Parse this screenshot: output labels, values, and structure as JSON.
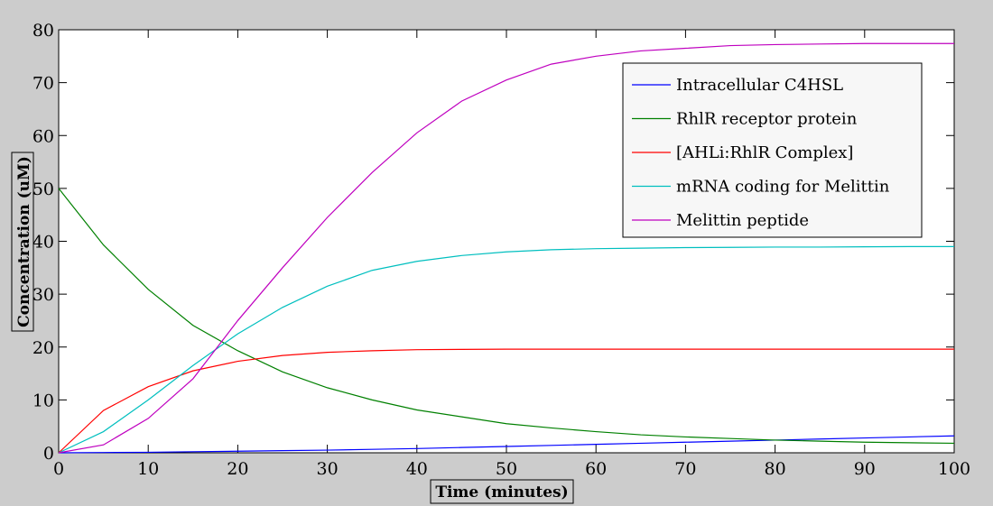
{
  "chart_data": {
    "type": "line",
    "title": "",
    "xlabel": "Time (minutes)",
    "ylabel": "Concentration (uM)",
    "xlim": [
      0,
      100
    ],
    "ylim": [
      0,
      80
    ],
    "xticks": [
      0,
      10,
      20,
      30,
      40,
      50,
      60,
      70,
      80,
      90,
      100
    ],
    "yticks": [
      0,
      10,
      20,
      30,
      40,
      50,
      60,
      70,
      80
    ],
    "grid": false,
    "legend_position": "top-right",
    "x": [
      0,
      5,
      10,
      15,
      20,
      25,
      30,
      35,
      40,
      45,
      50,
      55,
      60,
      65,
      70,
      75,
      80,
      85,
      90,
      95,
      100
    ],
    "series": [
      {
        "name": "Intracellular C4HSL",
        "color": "#0000ff",
        "values": [
          0,
          0.05,
          0.1,
          0.2,
          0.3,
          0.4,
          0.5,
          0.65,
          0.8,
          1.0,
          1.2,
          1.4,
          1.6,
          1.8,
          2.0,
          2.2,
          2.4,
          2.6,
          2.8,
          3.0,
          3.2
        ]
      },
      {
        "name": "RhlR receptor protein",
        "color": "#008000",
        "values": [
          50,
          39.3,
          30.9,
          24.1,
          19.3,
          15.3,
          12.3,
          10.0,
          8.1,
          6.8,
          5.5,
          4.7,
          4.0,
          3.4,
          3.0,
          2.7,
          2.4,
          2.2,
          2.0,
          1.9,
          1.8
        ]
      },
      {
        "name": "[AHLi:RhlR Complex]",
        "color": "#ff0000",
        "values": [
          0,
          8,
          12.5,
          15.5,
          17.3,
          18.4,
          19.0,
          19.3,
          19.5,
          19.55,
          19.6,
          19.6,
          19.6,
          19.6,
          19.6,
          19.6,
          19.6,
          19.6,
          19.6,
          19.6,
          19.6
        ]
      },
      {
        "name": "mRNA coding for Melittin",
        "color": "#00bfbf",
        "values": [
          0,
          4,
          10,
          16.5,
          22.5,
          27.5,
          31.5,
          34.5,
          36.2,
          37.3,
          38.0,
          38.4,
          38.6,
          38.7,
          38.8,
          38.85,
          38.9,
          38.9,
          38.95,
          39.0,
          39.0
        ]
      },
      {
        "name": "Melittin peptide",
        "color": "#bf00bf",
        "values": [
          0,
          1.5,
          6.5,
          14,
          25,
          35,
          44.5,
          53,
          60.5,
          66.5,
          70.5,
          73.5,
          75,
          76,
          76.5,
          77,
          77.2,
          77.3,
          77.4,
          77.4,
          77.4
        ]
      }
    ]
  }
}
